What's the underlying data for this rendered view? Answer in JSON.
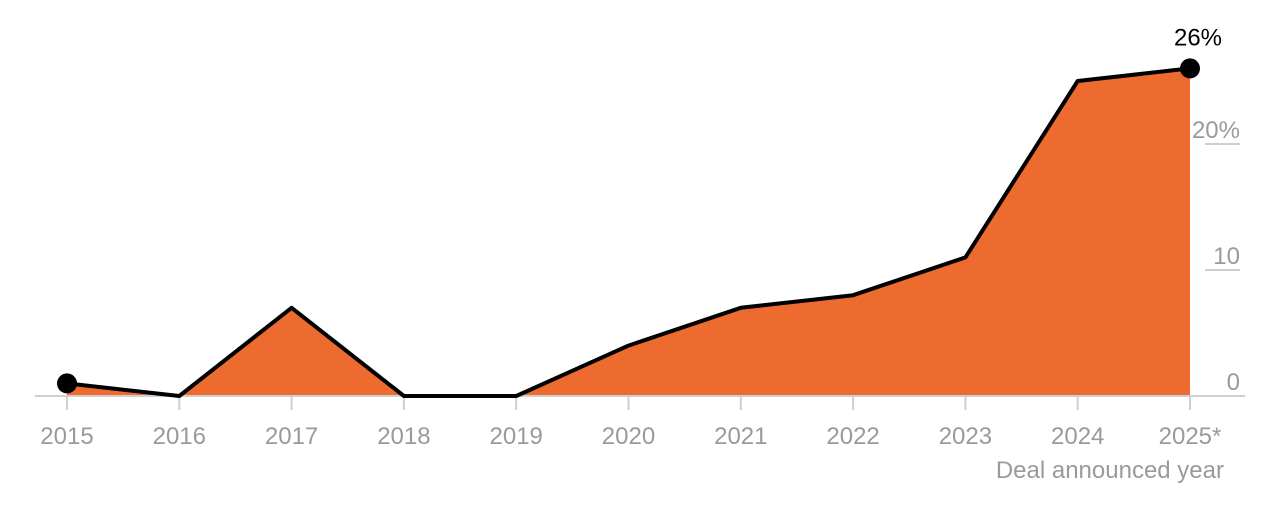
{
  "colors": {
    "area_fill": "#ED6B2E",
    "line": "#000000",
    "gridline": "#cfcfcf",
    "axis_text": "#9a9a9a"
  },
  "chart_data": {
    "type": "area",
    "x": [
      "2015",
      "2016",
      "2017",
      "2018",
      "2019",
      "2020",
      "2021",
      "2022",
      "2023",
      "2024",
      "2025*"
    ],
    "values": [
      1,
      0,
      7,
      0,
      0,
      4,
      7,
      8,
      11,
      25,
      26
    ],
    "xlabel": "Deal announced year",
    "ylabel": "",
    "ylim": [
      0,
      26
    ],
    "yticks": [
      {
        "value": 0,
        "label": "0"
      },
      {
        "value": 10,
        "label": "10"
      },
      {
        "value": 20,
        "label": "20%"
      }
    ],
    "grid": true,
    "markers": [
      {
        "index": 0
      },
      {
        "index": 10,
        "label": "26%"
      }
    ],
    "legend": "none"
  }
}
